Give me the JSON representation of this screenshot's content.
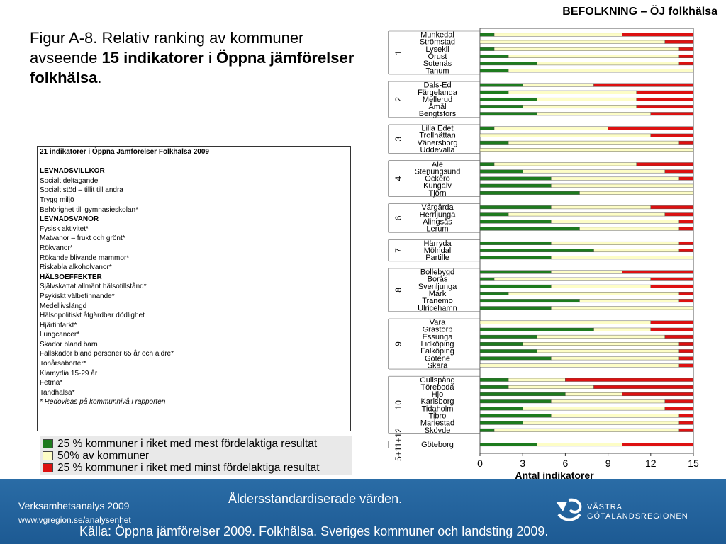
{
  "header": {
    "title": "BEFOLKNING – ÖJ folkhälsa"
  },
  "figure": {
    "title_pre": "Figur A-8. Relativ ranking av kommuner avseende ",
    "title_bold1": "15 indikatorer",
    "title_mid": " i ",
    "title_bold2": "Öppna jämförelser folkhälsa",
    "title_post": "."
  },
  "indicators": {
    "lines": [
      {
        "text": "21 indikatorer i Öppna Jämförelser Folkhälsa 2009",
        "style": "title"
      },
      {
        "text": "",
        "style": "blank"
      },
      {
        "text": "LEVNADSVILLKOR",
        "style": "heading"
      },
      {
        "text": "Socialt deltagande",
        "style": "normal"
      },
      {
        "text": "Socialt stöd – tillit till andra",
        "style": "normal"
      },
      {
        "text": "Trygg miljö",
        "style": "normal"
      },
      {
        "text": "Behörighet till gymnasieskolan*",
        "style": "normal"
      },
      {
        "text": "LEVNADSVANOR",
        "style": "heading"
      },
      {
        "text": "Fysisk aktivitet*",
        "style": "normal"
      },
      {
        "text": "Matvanor – frukt och grönt*",
        "style": "normal"
      },
      {
        "text": "Rökvanor*",
        "style": "normal"
      },
      {
        "text": "Rökande blivande mammor*",
        "style": "normal"
      },
      {
        "text": "Riskabla alkoholvanor*",
        "style": "normal"
      },
      {
        "text": "HÄLSOEFFEKTER",
        "style": "heading"
      },
      {
        "text": "Självskattat allmänt hälsotillstånd*",
        "style": "normal"
      },
      {
        "text": "Psykiskt välbefinnande*",
        "style": "normal"
      },
      {
        "text": "Medellivslängd",
        "style": "normal"
      },
      {
        "text": "Hälsopolitiskt åtgärdbar dödlighet",
        "style": "normal"
      },
      {
        "text": "Hjärtinfarkt*",
        "style": "normal"
      },
      {
        "text": "Lungcancer*",
        "style": "normal"
      },
      {
        "text": "Skador bland barn",
        "style": "normal"
      },
      {
        "text": "Fallskador bland personer 65 år och äldre*",
        "style": "normal"
      },
      {
        "text": "Tonårsaborter*",
        "style": "normal"
      },
      {
        "text": "Klamydia 15-29 år",
        "style": "normal"
      },
      {
        "text": "Fetma*",
        "style": "normal"
      },
      {
        "text": "Tandhälsa*",
        "style": "normal"
      },
      {
        "text": "* Redovisas på kommunnivå i rapporten",
        "style": "note"
      }
    ]
  },
  "legend": [
    {
      "label": "25 % kommuner i riket med mest fördelaktiga resultat",
      "color": "#1e7b1e"
    },
    {
      "label": "50% av kommuner",
      "color": "#fdfdc6"
    },
    {
      "label": "25 % kommuner i riket med minst fördelaktiga resultat",
      "color": "#dd1111"
    }
  ],
  "colors": {
    "green": "#1e7b1e",
    "yellow": "#fdfdc6",
    "red": "#dd1111",
    "footer": "#1f5f98"
  },
  "chart_data": {
    "type": "bar",
    "orientation": "horizontal-stacked",
    "xlabel": "Antal indikatorer",
    "xlim": [
      0,
      15
    ],
    "xticks": [
      0,
      3,
      6,
      9,
      12,
      15
    ],
    "grid": false,
    "series": [
      {
        "name": "25 % kommuner i riket med mest fördelaktiga resultat",
        "color": "#1e7b1e"
      },
      {
        "name": "50% av kommuner",
        "color": "#fdfdc6"
      },
      {
        "name": "25 % kommuner i riket med minst fördelaktiga resultat",
        "color": "#dd1111"
      }
    ],
    "groups": [
      {
        "name": "1",
        "rows": [
          {
            "label": "Munkedal",
            "values": [
              1,
              9,
              5
            ]
          },
          {
            "label": "Strömstad",
            "values": [
              0,
              13,
              2
            ]
          },
          {
            "label": "Lysekil",
            "values": [
              1,
              13,
              1
            ]
          },
          {
            "label": "Orust",
            "values": [
              2,
              12,
              1
            ]
          },
          {
            "label": "Sotenäs",
            "values": [
              4,
              10,
              1
            ]
          },
          {
            "label": "Tanum",
            "values": [
              2,
              13,
              0
            ]
          }
        ]
      },
      {
        "name": "2",
        "rows": [
          {
            "label": "Dals-Ed",
            "values": [
              3,
              5,
              7
            ]
          },
          {
            "label": "Färgelanda",
            "values": [
              2,
              9,
              4
            ]
          },
          {
            "label": "Mellerud",
            "values": [
              4,
              7,
              4
            ]
          },
          {
            "label": "Åmål",
            "values": [
              3,
              8,
              4
            ]
          },
          {
            "label": "Bengtsfors",
            "values": [
              4,
              8,
              3
            ]
          }
        ]
      },
      {
        "name": "3",
        "rows": [
          {
            "label": "Lilla Edet",
            "values": [
              1,
              8,
              6
            ]
          },
          {
            "label": "Trollhättan",
            "values": [
              0,
              12,
              3
            ]
          },
          {
            "label": "Vänersborg",
            "values": [
              2,
              12,
              1
            ]
          },
          {
            "label": "Uddevalla",
            "values": [
              0,
              15,
              0
            ]
          }
        ]
      },
      {
        "name": "4",
        "rows": [
          {
            "label": "Ale",
            "values": [
              1,
              10,
              4
            ]
          },
          {
            "label": "Stenungsund",
            "values": [
              3,
              10,
              2
            ]
          },
          {
            "label": "Öckerö",
            "values": [
              5,
              9,
              1
            ]
          },
          {
            "label": "Kungälv",
            "values": [
              5,
              10,
              0
            ]
          },
          {
            "label": "Tjörn",
            "values": [
              7,
              8,
              0
            ]
          }
        ]
      },
      {
        "name": "6",
        "rows": [
          {
            "label": "Vårgårda",
            "values": [
              5,
              7,
              3
            ]
          },
          {
            "label": "Herrljunga",
            "values": [
              2,
              11,
              2
            ]
          },
          {
            "label": "Alingsås",
            "values": [
              5,
              9,
              1
            ]
          },
          {
            "label": "Lerum",
            "values": [
              7,
              7,
              1
            ]
          }
        ]
      },
      {
        "name": "7",
        "rows": [
          {
            "label": "Härryda",
            "values": [
              5,
              9,
              1
            ]
          },
          {
            "label": "Mölndal",
            "values": [
              8,
              6,
              1
            ]
          },
          {
            "label": "Partille",
            "values": [
              5,
              10,
              0
            ]
          }
        ]
      },
      {
        "name": "8",
        "rows": [
          {
            "label": "Bollebygd",
            "values": [
              5,
              5,
              5
            ]
          },
          {
            "label": "Borås",
            "values": [
              1,
              11,
              3
            ]
          },
          {
            "label": "Svenljunga",
            "values": [
              5,
              7,
              3
            ]
          },
          {
            "label": "Mark",
            "values": [
              2,
              12,
              1
            ]
          },
          {
            "label": "Tranemo",
            "values": [
              7,
              7,
              1
            ]
          },
          {
            "label": "Ulricehamn",
            "values": [
              5,
              10,
              0
            ]
          }
        ]
      },
      {
        "name": "9",
        "rows": [
          {
            "label": "Vara",
            "values": [
              0,
              12,
              3
            ]
          },
          {
            "label": "Grästorp",
            "values": [
              8,
              4,
              3
            ]
          },
          {
            "label": "Essunga",
            "values": [
              4,
              9,
              2
            ]
          },
          {
            "label": "Lidköping",
            "values": [
              3,
              11,
              1
            ]
          },
          {
            "label": "Falköping",
            "values": [
              4,
              10,
              1
            ]
          },
          {
            "label": "Götene",
            "values": [
              5,
              9,
              1
            ]
          },
          {
            "label": "Skara",
            "values": [
              0,
              14,
              1
            ]
          }
        ]
      },
      {
        "name": "10",
        "rows": [
          {
            "label": "Gullspång",
            "values": [
              2,
              4,
              9
            ]
          },
          {
            "label": "Töreboda",
            "values": [
              2,
              6,
              7
            ]
          },
          {
            "label": "Hjo",
            "values": [
              6,
              4,
              5
            ]
          },
          {
            "label": "Karlsborg",
            "values": [
              5,
              8,
              2
            ]
          },
          {
            "label": "Tidaholm",
            "values": [
              3,
              10,
              2
            ]
          },
          {
            "label": "Tibro",
            "values": [
              5,
              9,
              1
            ]
          },
          {
            "label": "Mariestad",
            "values": [
              3,
              11,
              1
            ]
          },
          {
            "label": "Skövde",
            "values": [
              1,
              13,
              1
            ]
          }
        ]
      },
      {
        "name": "5+11+12",
        "rows": [
          {
            "label": "Göteborg",
            "values": [
              4,
              6,
              5
            ]
          }
        ]
      }
    ]
  },
  "footer": {
    "org": "Verksamhetsanalys 2009",
    "url": "www.vgregion.se/analysenhet",
    "note": "Åldersstandardiserade värden.",
    "source": "Källa: Öppna jämförelser 2009. Folkhälsa. Sveriges kommuner och landsting 2009.",
    "logo_line1": "VÄSTRA",
    "logo_line2": "GÖTALANDSREGIONEN"
  }
}
